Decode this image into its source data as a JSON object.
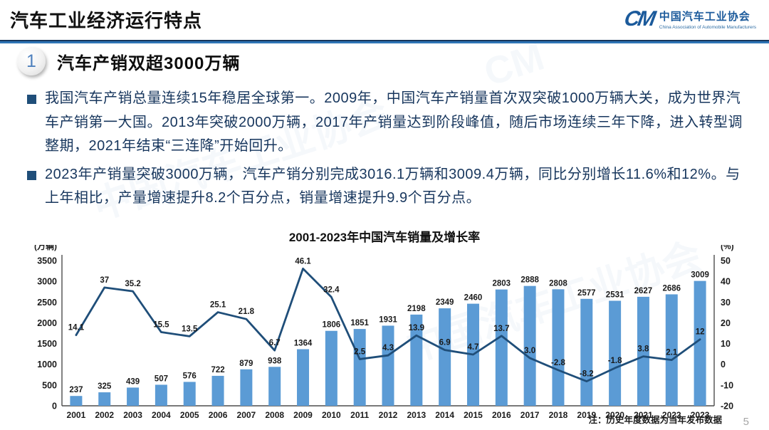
{
  "page": {
    "title": "汽车工业经济运行特点",
    "note": "注：历史年度数据为当年发布数据",
    "page_number": "5"
  },
  "logo": {
    "mark": "CM",
    "name_cn": "中国汽车工业协会",
    "name_en": "China Association of Automobile Manufacturers"
  },
  "section": {
    "number": "1",
    "title": "汽车产销双超3000万辆"
  },
  "bullets": [
    {
      "text": "我国汽车产销总量连续15年稳居全球第一。2009年，中国汽车产销量首次双突破1000万辆大关，成为世界汽车产销第一大国。2013年突破2000万辆，2017年产销量达到阶段峰值，随后市场连续三年下降，进入转型调整期，2021年结束“三连降”开始回升。"
    },
    {
      "text": "2023年产销量突破3000万辆，汽车产销分别完成3016.1万辆和3009.4万辆，同比分别增长11.6%和12%。与上年相比，产量增速提升8.2个百分点，销量增速提升9.9个百分点。"
    }
  ],
  "chart_data": {
    "type": "bar",
    "title": "2001-2023年中国汽车销量及增长率",
    "categories": [
      "2001",
      "2002",
      "2003",
      "2004",
      "2005",
      "2006",
      "2007",
      "2008",
      "2009",
      "2010",
      "2011",
      "2012",
      "2013",
      "2014",
      "2015",
      "2016",
      "2017",
      "2018",
      "2019",
      "2020",
      "2021",
      "2022",
      "2023"
    ],
    "series": [
      {
        "name": "销量",
        "type": "bar",
        "unit": "万辆",
        "color": "#5B9BD5",
        "axis": "left",
        "values": [
          237,
          325,
          439,
          507,
          576,
          722,
          879,
          938,
          1364,
          1806,
          1851,
          1931,
          2198,
          2349,
          2460,
          2803,
          2888,
          2808,
          2577,
          2531,
          2627,
          2686,
          3009
        ]
      },
      {
        "name": "增长率",
        "type": "line",
        "unit": "%",
        "color": "#1F4E79",
        "axis": "right",
        "values": [
          14.1,
          37,
          35.2,
          15.5,
          13.5,
          25.1,
          21.8,
          6.7,
          46.1,
          32.4,
          2.5,
          4.3,
          13.9,
          6.9,
          4.7,
          13.7,
          3.0,
          -2.8,
          -8.2,
          -1.8,
          3.8,
          2.1,
          12
        ],
        "labels": [
          "14.1",
          "37",
          "35.2",
          "15.5",
          "13.5",
          "25.1",
          "21.8",
          "6.7",
          "46.1",
          "32.4",
          "2.5",
          "4.3",
          "13.9",
          "6.9",
          "4.7",
          "13.7",
          "3.0",
          "-2.8",
          "-8.2",
          "-1.8",
          "3.8",
          "2.1",
          "12"
        ]
      }
    ],
    "left_axis": {
      "label": "(万辆)",
      "min": 0,
      "max": 3500,
      "ticks": [
        3500,
        3000,
        2500,
        2000,
        1500,
        1000,
        500,
        0
      ]
    },
    "right_axis": {
      "label": "(%)",
      "min": -20,
      "max": 50,
      "ticks": [
        50,
        40,
        30,
        20,
        10,
        0,
        -10,
        -20
      ]
    },
    "grid": false,
    "legend": "none"
  },
  "colors": {
    "accent_blue": "#2e74b5",
    "header_navy": "#16365c",
    "bar_blue": "#5B9BD5",
    "line_navy": "#1F4E79",
    "body_text_navy": "#17365d"
  }
}
